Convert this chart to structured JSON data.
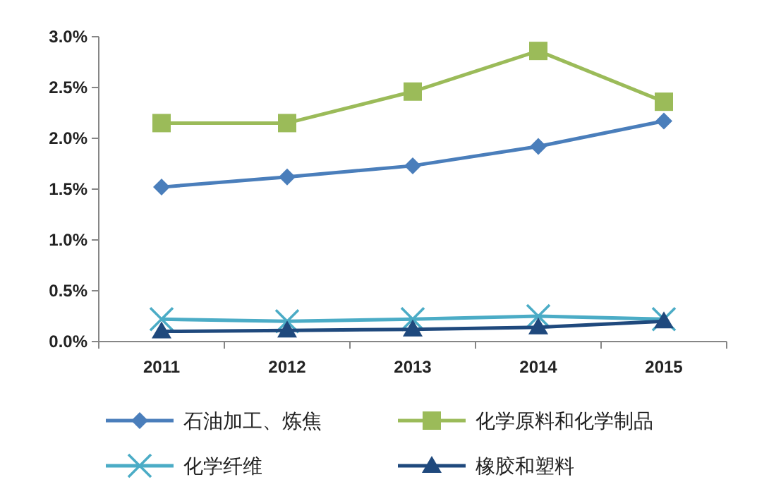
{
  "chart_data": {
    "type": "line",
    "categories": [
      "2011",
      "2012",
      "2013",
      "2014",
      "2015"
    ],
    "series": [
      {
        "name": "石油加工、炼焦",
        "color": "#4a7ebb",
        "marker": "diamond",
        "values": [
          1.52,
          1.62,
          1.73,
          1.92,
          2.17
        ]
      },
      {
        "name": "化学原料和化学制品",
        "color": "#9bbb59",
        "marker": "square",
        "values": [
          2.15,
          2.15,
          2.46,
          2.86,
          2.36
        ]
      },
      {
        "name": "化学纤维",
        "color": "#4bacc6",
        "marker": "cross",
        "values": [
          0.22,
          0.2,
          0.22,
          0.25,
          0.22
        ]
      },
      {
        "name": "橡胶和塑料",
        "color": "#1f497d",
        "marker": "triangle",
        "values": [
          0.1,
          0.11,
          0.12,
          0.14,
          0.2
        ]
      }
    ],
    "ylim": [
      0,
      3
    ],
    "yticks": [
      {
        "value": 0,
        "label": "0.0%"
      },
      {
        "value": 0.5,
        "label": "0.5%"
      },
      {
        "value": 1,
        "label": "1.0%"
      },
      {
        "value": 1.5,
        "label": "1.5%"
      },
      {
        "value": 2,
        "label": "2.0%"
      },
      {
        "value": 2.5,
        "label": "2.5%"
      },
      {
        "value": 3,
        "label": "3.0%"
      }
    ],
    "grid": false,
    "legend": "bottom",
    "line_style": "solid"
  }
}
